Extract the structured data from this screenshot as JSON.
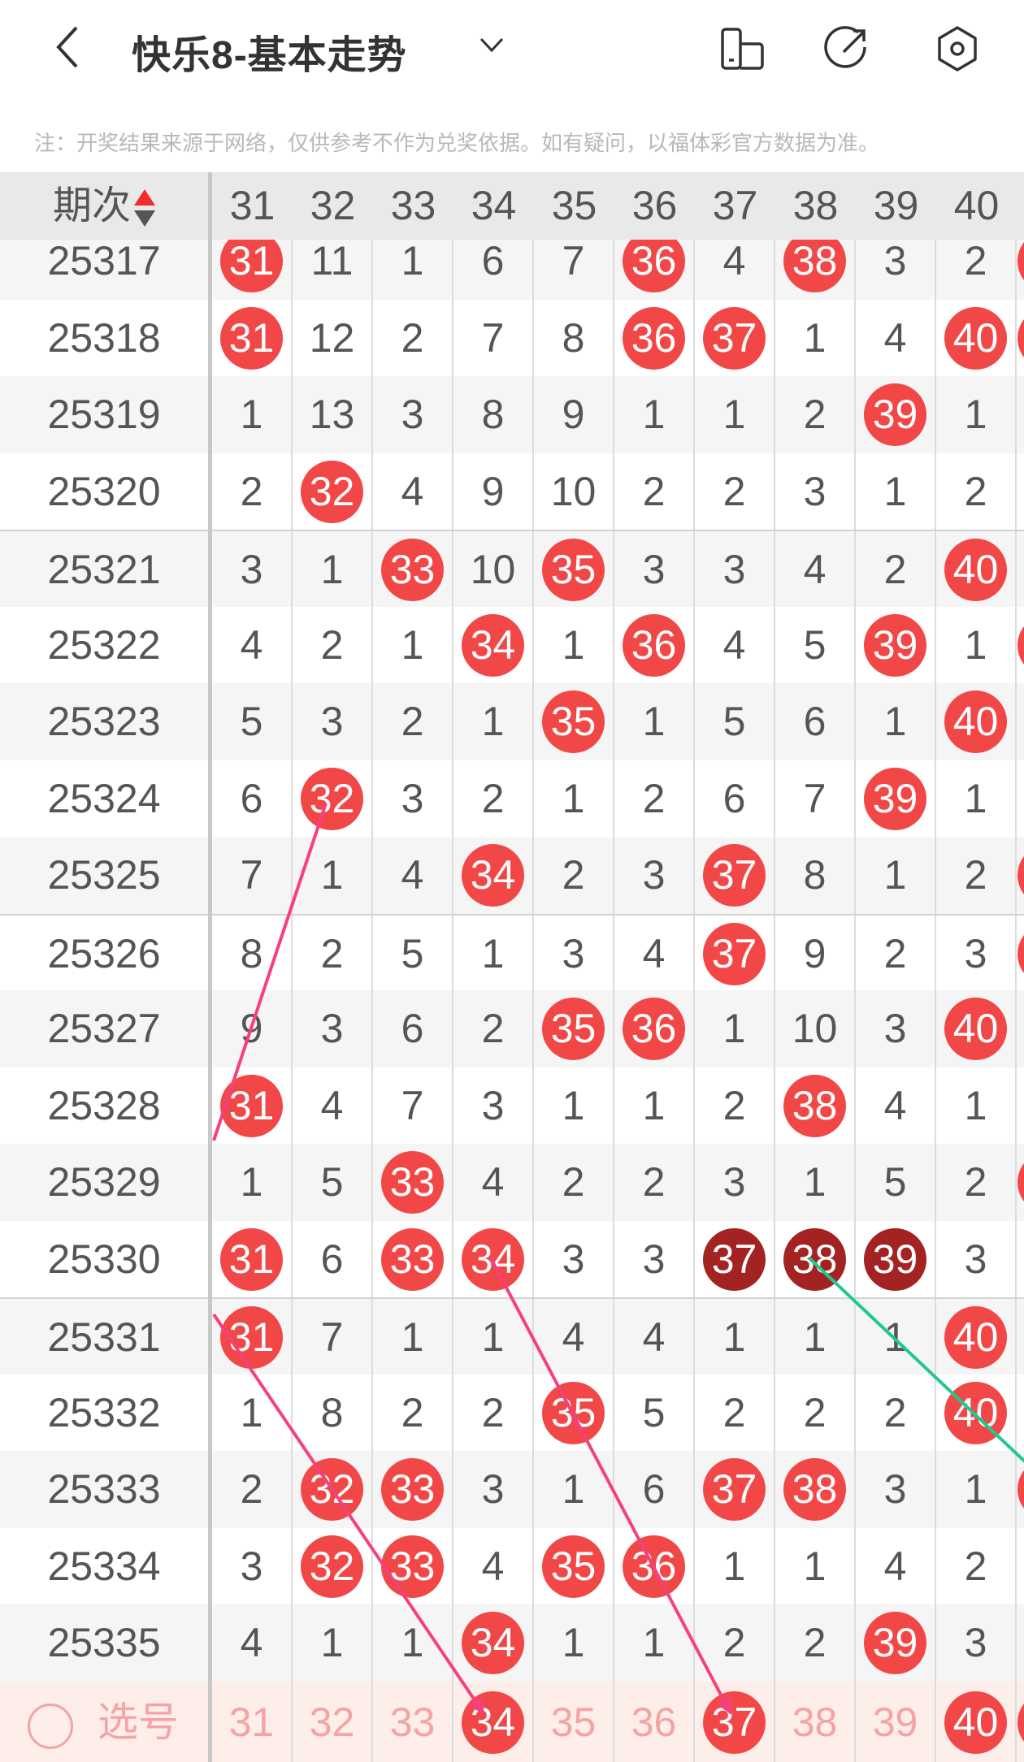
{
  "header": {
    "title": "快乐8-基本走势",
    "icons": [
      "back-icon",
      "chevron-down-icon",
      "layout-switch-icon",
      "share-icon",
      "settings-icon"
    ]
  },
  "note": "注：开奖结果来源于网络，仅供参考不作为兑奖依据。如有疑问，以福体彩官方数据为准。",
  "table": {
    "issue_header": "期次",
    "columns": [
      "31",
      "32",
      "33",
      "34",
      "35",
      "36",
      "37",
      "38",
      "39",
      "40"
    ],
    "colors": {
      "hit": "#f24747",
      "repeat_hit": "#a32222",
      "selected_text": "#f5a3a3",
      "trend_line": "#f4417e",
      "trend_line_alt": "#1fc98e"
    },
    "rows": [
      {
        "issue": "25317",
        "values": [
          "31",
          "11",
          "1",
          "6",
          "7",
          "36",
          "4",
          "38",
          "3",
          "2"
        ],
        "marks": [
          "hit",
          "",
          "",
          "",
          "",
          "hit",
          "",
          "hit",
          "",
          ""
        ],
        "col41_hit": true
      },
      {
        "issue": "25318",
        "values": [
          "31",
          "12",
          "2",
          "7",
          "8",
          "36",
          "37",
          "1",
          "4",
          "40"
        ],
        "marks": [
          "hit",
          "",
          "",
          "",
          "",
          "hit",
          "hit",
          "",
          "",
          "hit"
        ],
        "col41_hit": true
      },
      {
        "issue": "25319",
        "values": [
          "1",
          "13",
          "3",
          "8",
          "9",
          "1",
          "1",
          "2",
          "39",
          "1"
        ],
        "marks": [
          "",
          "",
          "",
          "",
          "",
          "",
          "",
          "",
          "hit",
          ""
        ],
        "col41_hit": false
      },
      {
        "issue": "25320",
        "values": [
          "2",
          "32",
          "4",
          "9",
          "10",
          "2",
          "2",
          "3",
          "1",
          "2"
        ],
        "marks": [
          "",
          "hit",
          "",
          "",
          "",
          "",
          "",
          "",
          "",
          ""
        ],
        "col41_hit": false
      },
      {
        "issue": "25321",
        "values": [
          "3",
          "1",
          "33",
          "10",
          "35",
          "3",
          "3",
          "4",
          "2",
          "40"
        ],
        "marks": [
          "",
          "",
          "hit",
          "",
          "hit",
          "",
          "",
          "",
          "",
          "hit"
        ],
        "col41_hit": false
      },
      {
        "issue": "25322",
        "values": [
          "4",
          "2",
          "1",
          "34",
          "1",
          "36",
          "4",
          "5",
          "39",
          "1"
        ],
        "marks": [
          "",
          "",
          "",
          "hit",
          "",
          "hit",
          "",
          "",
          "hit",
          ""
        ],
        "col41_hit": true
      },
      {
        "issue": "25323",
        "values": [
          "5",
          "3",
          "2",
          "1",
          "35",
          "1",
          "5",
          "6",
          "1",
          "40"
        ],
        "marks": [
          "",
          "",
          "",
          "",
          "hit",
          "",
          "",
          "",
          "",
          "hit"
        ],
        "col41_hit": false
      },
      {
        "issue": "25324",
        "values": [
          "6",
          "32",
          "3",
          "2",
          "1",
          "2",
          "6",
          "7",
          "39",
          "1"
        ],
        "marks": [
          "",
          "hit",
          "",
          "",
          "",
          "",
          "",
          "",
          "hit",
          ""
        ],
        "col41_hit": false
      },
      {
        "issue": "25325",
        "values": [
          "7",
          "1",
          "4",
          "34",
          "2",
          "3",
          "37",
          "8",
          "1",
          "2"
        ],
        "marks": [
          "",
          "",
          "",
          "hit",
          "",
          "",
          "hit",
          "",
          "",
          ""
        ],
        "col41_hit": true
      },
      {
        "issue": "25326",
        "values": [
          "8",
          "2",
          "5",
          "1",
          "3",
          "4",
          "37",
          "9",
          "2",
          "3"
        ],
        "marks": [
          "",
          "",
          "",
          "",
          "",
          "",
          "hit",
          "",
          "",
          ""
        ],
        "col41_hit": true
      },
      {
        "issue": "25327",
        "values": [
          "9",
          "3",
          "6",
          "2",
          "35",
          "36",
          "1",
          "10",
          "3",
          "40"
        ],
        "marks": [
          "",
          "",
          "",
          "",
          "hit",
          "hit",
          "",
          "",
          "",
          "hit"
        ],
        "col41_hit": false
      },
      {
        "issue": "25328",
        "values": [
          "31",
          "4",
          "7",
          "3",
          "1",
          "1",
          "2",
          "38",
          "4",
          "1"
        ],
        "marks": [
          "hit",
          "",
          "",
          "",
          "",
          "",
          "",
          "hit",
          "",
          ""
        ],
        "col41_hit": false
      },
      {
        "issue": "25329",
        "values": [
          "1",
          "5",
          "33",
          "4",
          "2",
          "2",
          "3",
          "1",
          "5",
          "2"
        ],
        "marks": [
          "",
          "",
          "hit",
          "",
          "",
          "",
          "",
          "",
          "",
          ""
        ],
        "col41_hit": true
      },
      {
        "issue": "25330",
        "values": [
          "31",
          "6",
          "33",
          "34",
          "3",
          "3",
          "37",
          "38",
          "39",
          "3"
        ],
        "marks": [
          "hit",
          "",
          "hit",
          "hit",
          "",
          "",
          "dark",
          "dark",
          "dark",
          ""
        ],
        "col41_hit": false
      },
      {
        "issue": "25331",
        "values": [
          "31",
          "7",
          "1",
          "1",
          "4",
          "4",
          "1",
          "1",
          "1",
          "40"
        ],
        "marks": [
          "hit",
          "",
          "",
          "",
          "",
          "",
          "",
          "",
          "",
          "hit"
        ],
        "col41_hit": false
      },
      {
        "issue": "25332",
        "values": [
          "1",
          "8",
          "2",
          "2",
          "35",
          "5",
          "2",
          "2",
          "2",
          "40"
        ],
        "marks": [
          "",
          "",
          "",
          "",
          "hit",
          "",
          "",
          "",
          "",
          "hit"
        ],
        "col41_hit": false
      },
      {
        "issue": "25333",
        "values": [
          "2",
          "32",
          "33",
          "3",
          "1",
          "6",
          "37",
          "38",
          "3",
          "1"
        ],
        "marks": [
          "",
          "hit",
          "hit",
          "",
          "",
          "",
          "hit",
          "hit",
          "",
          ""
        ],
        "col41_hit": true
      },
      {
        "issue": "25334",
        "values": [
          "3",
          "32",
          "33",
          "4",
          "35",
          "36",
          "1",
          "1",
          "4",
          "2"
        ],
        "marks": [
          "",
          "hit",
          "hit",
          "",
          "hit",
          "hit",
          "",
          "",
          "",
          ""
        ],
        "col41_hit": false
      },
      {
        "issue": "25335",
        "values": [
          "4",
          "1",
          "1",
          "34",
          "1",
          "1",
          "2",
          "2",
          "39",
          "3"
        ],
        "marks": [
          "",
          "",
          "",
          "hit",
          "",
          "",
          "",
          "",
          "hit",
          ""
        ],
        "col41_hit": false
      }
    ],
    "select_row": {
      "label": "选号",
      "values": [
        "31",
        "32",
        "33",
        "34",
        "35",
        "36",
        "37",
        "38",
        "39",
        "40"
      ],
      "marks": [
        "",
        "",
        "",
        "hit",
        "",
        "",
        "hit",
        "",
        "",
        "hit"
      ],
      "col41_hit": true
    }
  }
}
